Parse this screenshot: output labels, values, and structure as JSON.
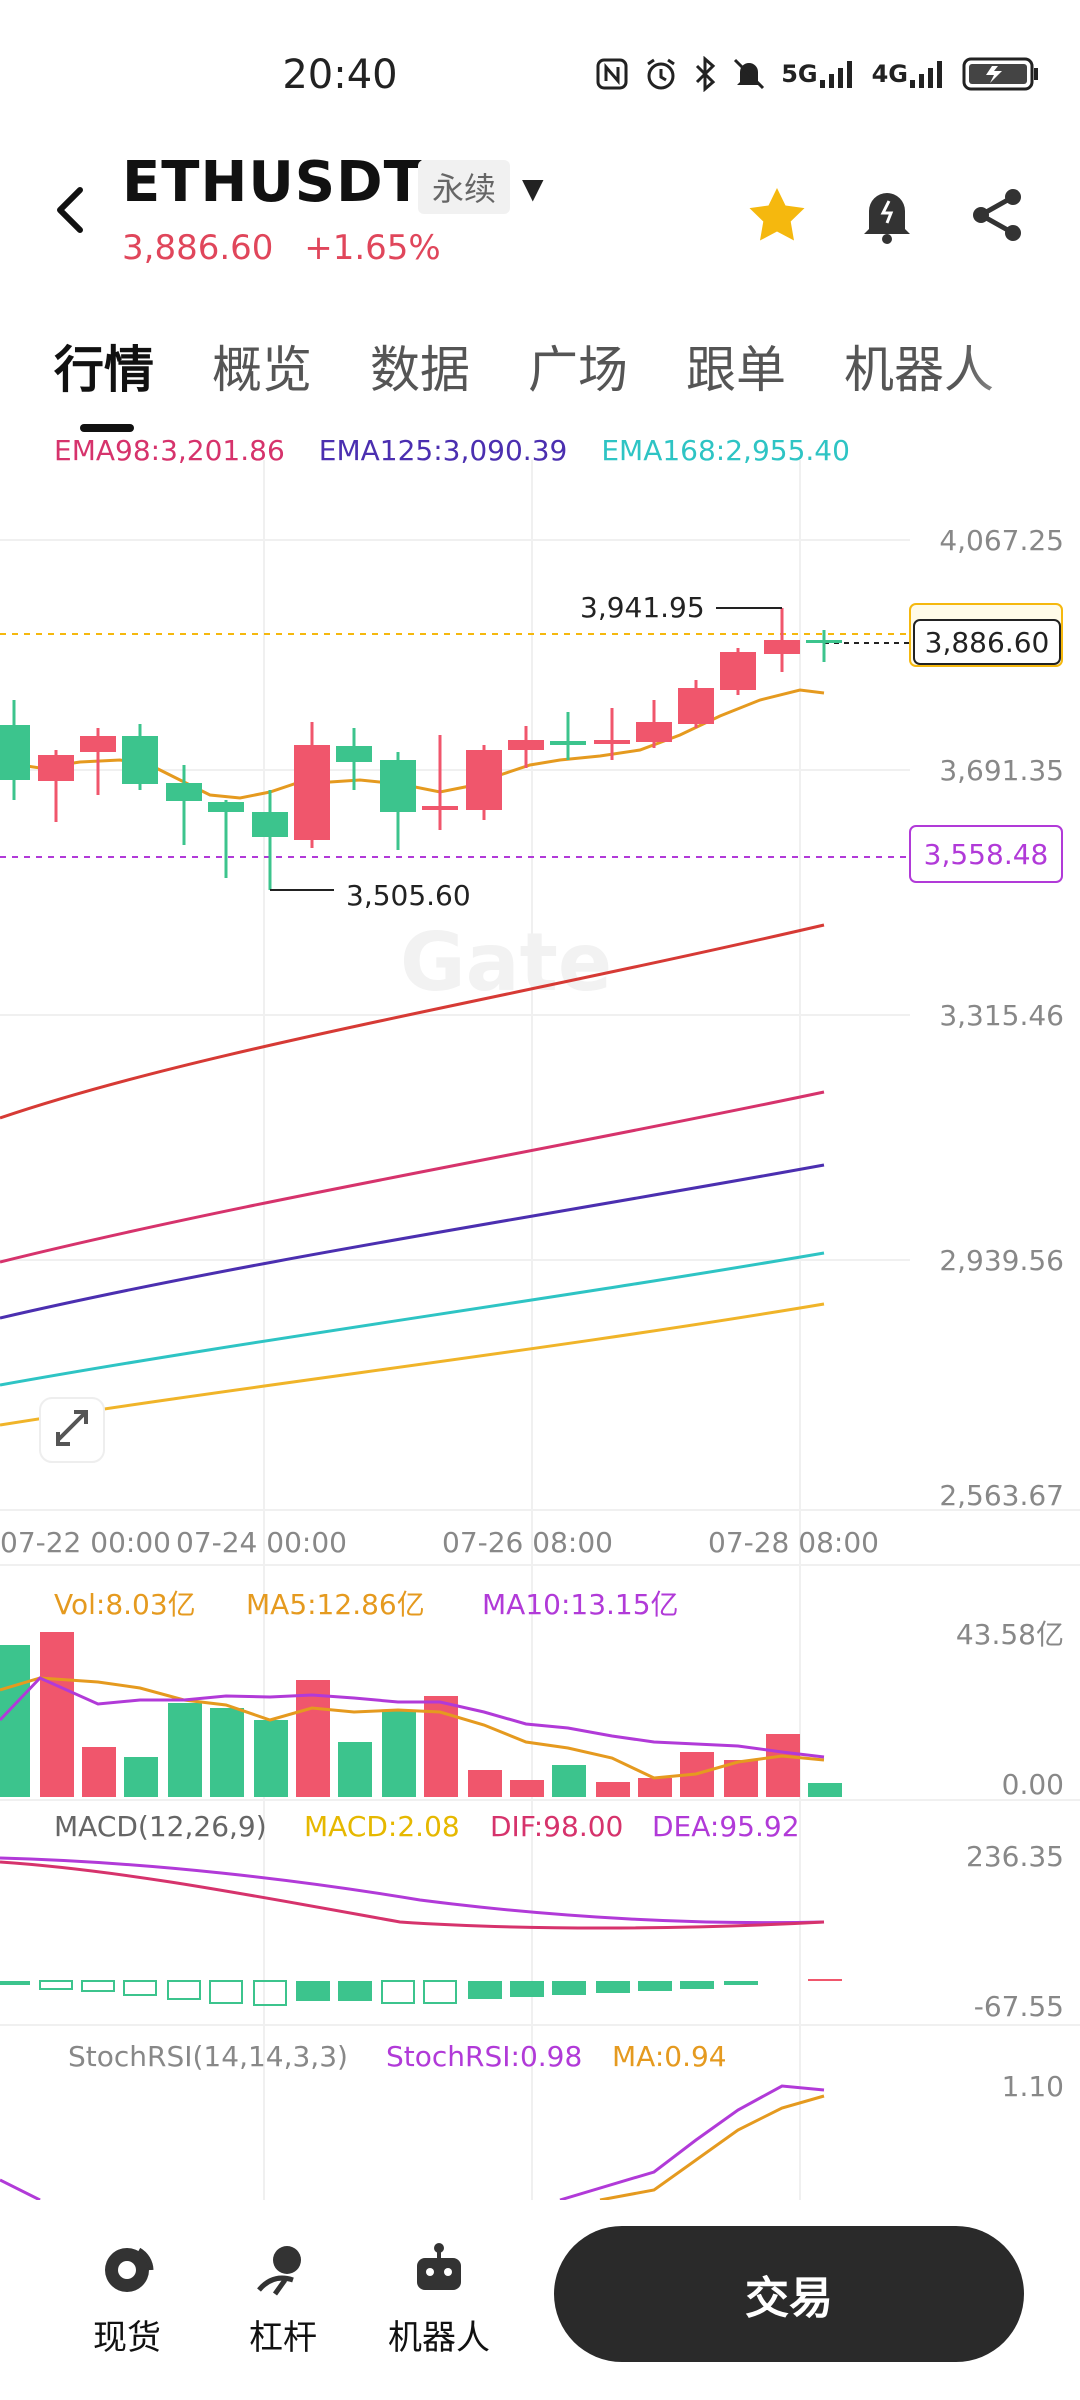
{
  "status_bar": {
    "time": "20:40",
    "icons": [
      "nfc-icon",
      "alarm-icon",
      "bluetooth-icon",
      "mute-icon",
      "signal-5g-icon",
      "signal-4g-icon",
      "battery-charging-icon"
    ],
    "net1": "5G",
    "net2": "4G"
  },
  "header": {
    "pair": "ETHUSDT",
    "contract_type": "永续",
    "price": "3,886.60",
    "change": "+1.65%",
    "price_color": "#e0465b"
  },
  "tabs": [
    {
      "label": "行情",
      "active": true
    },
    {
      "label": "概览"
    },
    {
      "label": "数据"
    },
    {
      "label": "广场"
    },
    {
      "label": "跟单"
    },
    {
      "label": "机器人"
    }
  ],
  "ema_legend": [
    {
      "label": "EMA98:3,201.86",
      "color": "#d6336c"
    },
    {
      "label": "EMA125:3,090.39",
      "color": "#4b2fb0"
    },
    {
      "label": "EMA168:2,955.40",
      "color": "#2ec4c4"
    }
  ],
  "main_chart": {
    "y_ticks": [
      "4,067.25",
      "3,691.35",
      "3,315.46",
      "2,939.56",
      "2,563.67"
    ],
    "x_ticks": [
      "07-22 00:00",
      "07-24 00:00",
      "07-26 08:00",
      "07-28 08:00"
    ],
    "current_price_label": "3,886.60",
    "alert_line_label": "3,558.48",
    "high_label": "3,941.95",
    "low_label": "3,505.60",
    "watermark": "Gate"
  },
  "volume": {
    "legend": [
      {
        "label": "Vol:8.03亿",
        "color": "#e59a1f"
      },
      {
        "label": "MA5:12.86亿",
        "color": "#e59a1f"
      },
      {
        "label": "MA10:13.15亿",
        "color": "#b13ad8"
      }
    ],
    "y_top": "43.58亿",
    "y_bottom": "0.00"
  },
  "macd": {
    "legend": [
      {
        "label": "MACD(12,26,9)",
        "color": "#666666"
      },
      {
        "label": "MACD:2.08",
        "color": "#e6b800"
      },
      {
        "label": "DIF:98.00",
        "color": "#d6336c"
      },
      {
        "label": "DEA:95.92",
        "color": "#b13ad8"
      }
    ],
    "y_top": "236.35",
    "y_bottom": "-67.55"
  },
  "stochrsi": {
    "legend": [
      {
        "label": "StochRSI(14,14,3,3)",
        "color": "#888888"
      },
      {
        "label": "StochRSI:0.98",
        "color": "#b13ad8"
      },
      {
        "label": "MA:0.94",
        "color": "#e59a1f"
      }
    ],
    "y_top": "1.10"
  },
  "bottom_nav": {
    "items": [
      {
        "label": "现货",
        "icon": "spot-icon"
      },
      {
        "label": "杠杆",
        "icon": "margin-icon"
      },
      {
        "label": "机器人",
        "icon": "robot-icon"
      }
    ],
    "trade_label": "交易"
  },
  "colors": {
    "up": "#f0566c",
    "down": "#3cc48d",
    "accent": "#f5b80e"
  }
}
